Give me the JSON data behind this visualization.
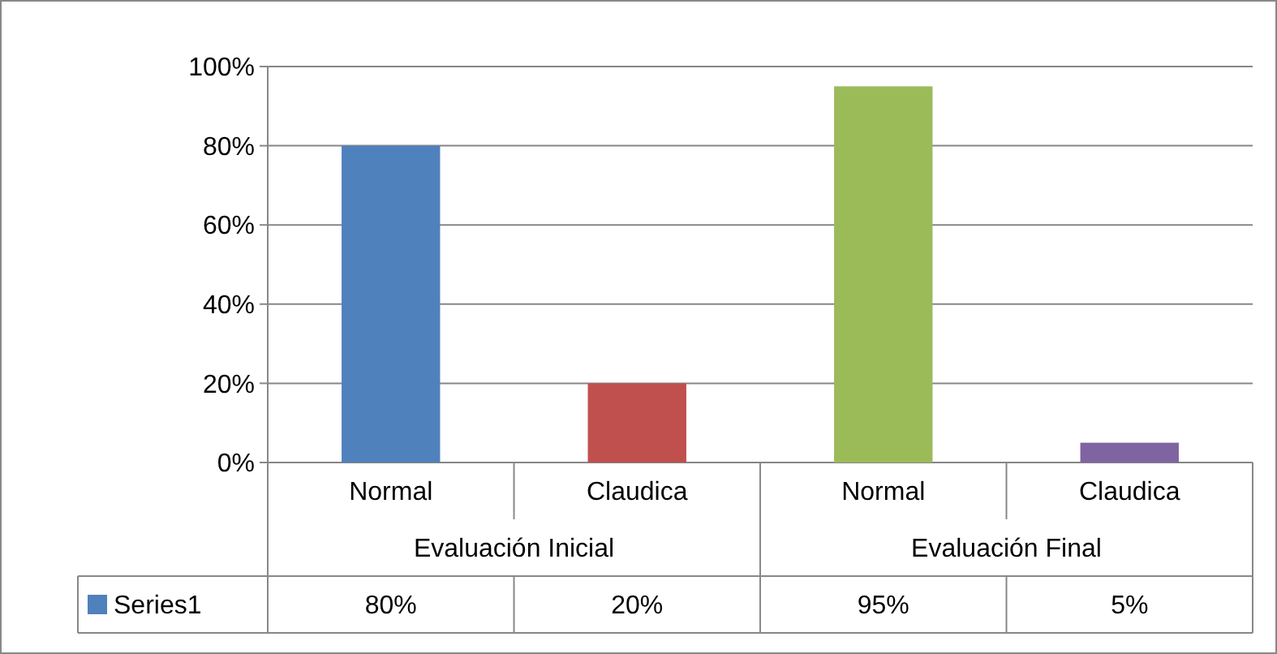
{
  "chart_data": {
    "type": "bar",
    "categories": [
      "Normal",
      "Claudica",
      "Normal",
      "Claudica"
    ],
    "annotations": [
      "Evaluación Inicial",
      "Evaluación Final"
    ],
    "series": [
      {
        "name": "Series1",
        "colors": [
          "#4f81bd",
          "#c0504d",
          "#9bbb59",
          "#8064a2"
        ],
        "values": [
          80,
          20,
          95,
          5
        ],
        "value_labels": [
          "80%",
          "20%",
          "95%",
          "5%"
        ]
      }
    ],
    "ylim": [
      0,
      100
    ],
    "yticks": [
      {
        "value": 0,
        "label": "0%"
      },
      {
        "value": 20,
        "label": "20%"
      },
      {
        "value": 40,
        "label": "40%"
      },
      {
        "value": 60,
        "label": "60%"
      },
      {
        "value": 80,
        "label": "80%"
      },
      {
        "value": 100,
        "label": "100%"
      }
    ],
    "grid": "y",
    "legend": "bottom"
  }
}
